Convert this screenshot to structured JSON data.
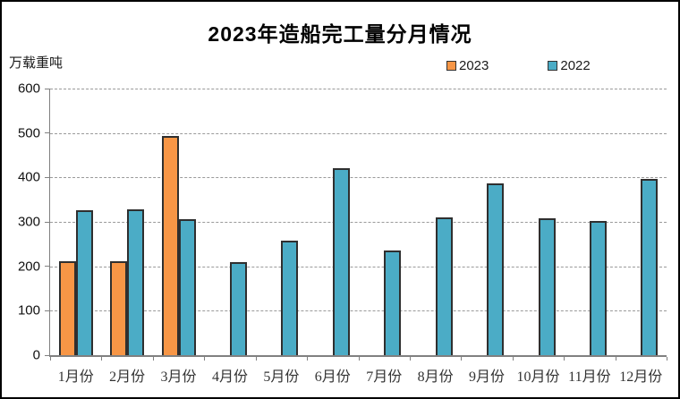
{
  "chart_data": {
    "type": "bar",
    "title": "2023年造船完工量分月情况",
    "unit_label": "万载重吨",
    "categories": [
      "1月份",
      "2月份",
      "3月份",
      "4月份",
      "5月份",
      "6月份",
      "7月份",
      "8月份",
      "9月份",
      "10月份",
      "11月份",
      "12月份"
    ],
    "series": [
      {
        "name": "2023",
        "color": "#F79646",
        "values": [
          212,
          212,
          494,
          null,
          null,
          null,
          null,
          null,
          null,
          null,
          null,
          null
        ]
      },
      {
        "name": "2022",
        "color": "#4BACC6",
        "values": [
          327,
          328,
          307,
          209,
          257,
          421,
          235,
          310,
          387,
          308,
          303,
          397
        ]
      }
    ],
    "ylim": [
      0,
      600
    ],
    "yticks": [
      0,
      100,
      200,
      300,
      400,
      500,
      600
    ],
    "grid": "horizontal dashed",
    "legend_position": "top"
  },
  "colors": {
    "background": "#FFFFFF",
    "frame_border": "#000000",
    "bar_border": "#2F2F2F",
    "gridline": "#9A9A9A",
    "axis": "#808080",
    "title_text": "#000000",
    "axis_text": "#111111",
    "xlabel_text": "#333333"
  }
}
